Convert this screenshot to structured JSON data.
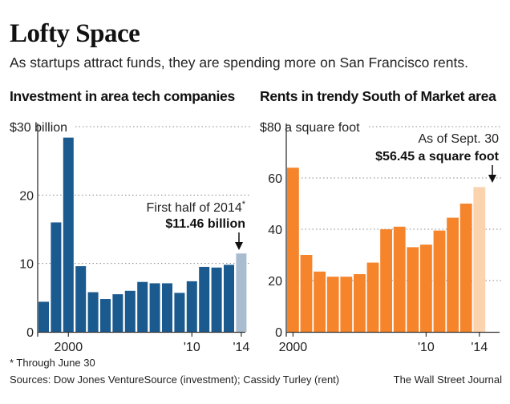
{
  "header": {
    "title": "Lofty Space",
    "subtitle": "As startups attract funds, they are spending more on San Francisco rents."
  },
  "colors": {
    "investment_bar": "#1b5a8e",
    "investment_highlight": "#a9bcd0",
    "rent_bar": "#f5842a",
    "rent_highlight": "#fbd3ae",
    "axis": "#333333",
    "gridline": "#888888"
  },
  "chart_data": [
    {
      "type": "bar",
      "title": "Investment in area tech companies",
      "ylabel": "",
      "xlabel": "",
      "unit": "billion dollars",
      "ylim": [
        0,
        30
      ],
      "yticks": [
        0,
        10,
        20,
        30
      ],
      "ytick_labels": [
        "0",
        "10",
        "20",
        "$30 billion"
      ],
      "categories": [
        "1998",
        "1999",
        "2000",
        "2001",
        "2002",
        "2003",
        "2004",
        "2005",
        "2006",
        "2007",
        "2008",
        "2009",
        "2010",
        "2011",
        "2012",
        "2013",
        "2014"
      ],
      "values": [
        4.4,
        16.0,
        28.4,
        9.6,
        5.8,
        4.8,
        5.5,
        6.0,
        7.3,
        7.1,
        7.1,
        5.7,
        7.4,
        9.5,
        9.4,
        9.8,
        11.46
      ],
      "highlight_index": 16,
      "xtick_labels": [
        {
          "index": 2,
          "label": "2000"
        },
        {
          "index": 12,
          "label": "'10"
        },
        {
          "index": 16,
          "label": "'14"
        }
      ],
      "annotation": {
        "line1": "First half of 2014",
        "marker": "*",
        "line2": "$11.46 billion"
      }
    },
    {
      "type": "bar",
      "title": "Rents in trendy South of Market area",
      "ylabel": "",
      "xlabel": "",
      "unit": "dollars per square foot",
      "ylim": [
        0,
        80
      ],
      "yticks": [
        0,
        20,
        40,
        60,
        80
      ],
      "ytick_labels": [
        "0",
        "20",
        "40",
        "60",
        "$80 a square foot"
      ],
      "categories": [
        "2000",
        "2001",
        "2002",
        "2003",
        "2004",
        "2005",
        "2006",
        "2007",
        "2008",
        "2009",
        "2010",
        "2011",
        "2012",
        "2013",
        "2014"
      ],
      "values": [
        64.0,
        30.0,
        23.5,
        21.5,
        21.5,
        22.5,
        27.0,
        40.0,
        41.0,
        33.0,
        34.0,
        39.5,
        44.5,
        50.0,
        56.45
      ],
      "highlight_index": 14,
      "xtick_labels": [
        {
          "index": 0,
          "label": "2000"
        },
        {
          "index": 10,
          "label": "'10"
        },
        {
          "index": 14,
          "label": "'14"
        }
      ],
      "annotation": {
        "line1": "As of Sept. 30",
        "line2": "$56.45 a square foot"
      }
    }
  ],
  "footer": {
    "footnote": "* Through June 30",
    "sources": "Sources: Dow Jones VentureSource (investment); Cassidy Turley (rent)",
    "credit": "The Wall Street Journal"
  }
}
